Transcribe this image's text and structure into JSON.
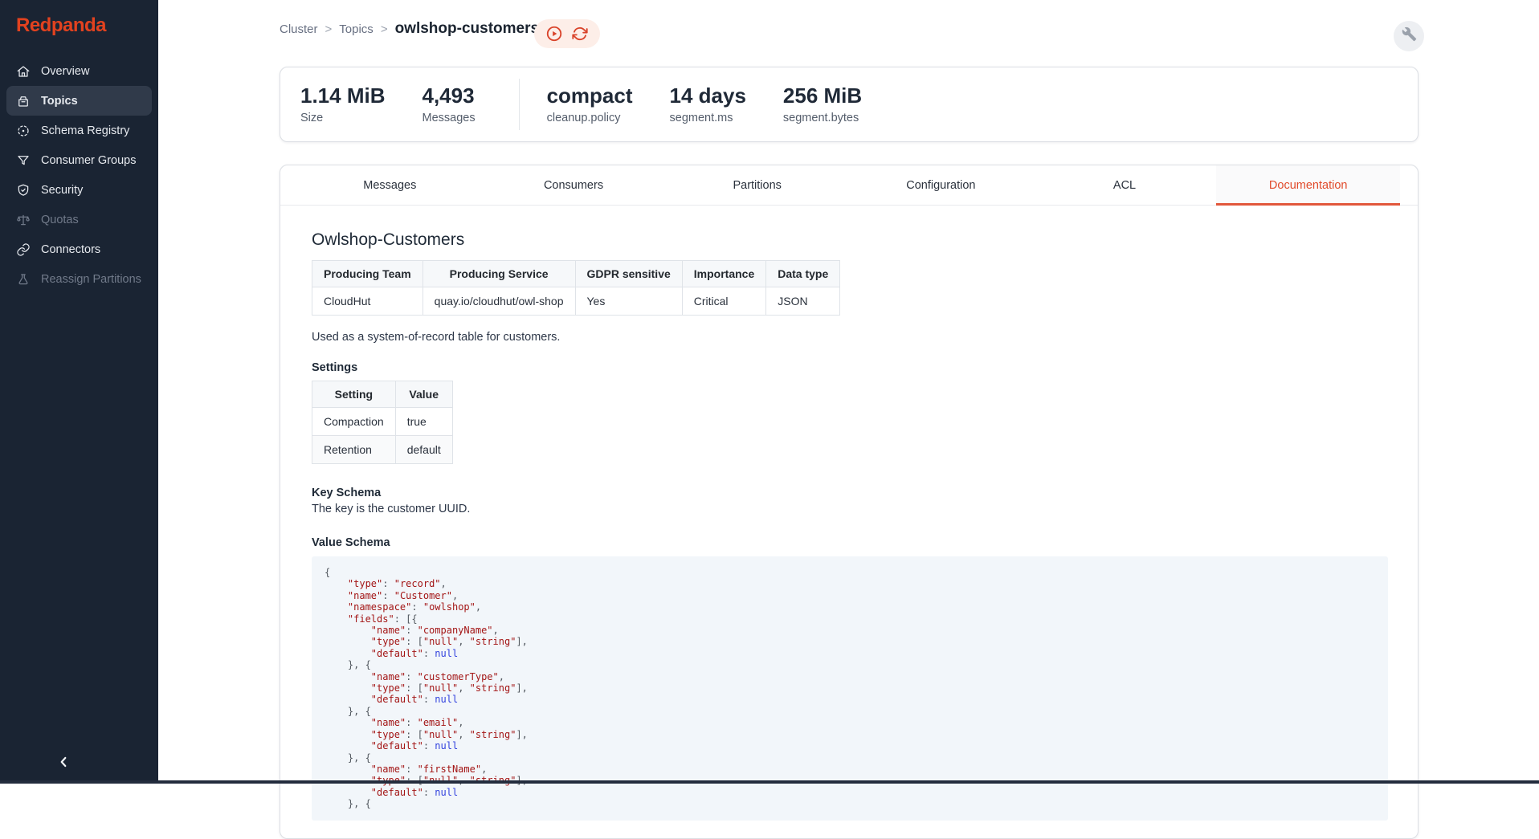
{
  "sidebar": {
    "logo": "Redpanda",
    "items": [
      {
        "label": "Overview",
        "icon": "home",
        "active": false,
        "disabled": false
      },
      {
        "label": "Topics",
        "icon": "topics-box",
        "active": true,
        "disabled": false
      },
      {
        "label": "Schema Registry",
        "icon": "schema-registry",
        "active": false,
        "disabled": false
      },
      {
        "label": "Consumer Groups",
        "icon": "funnel",
        "active": false,
        "disabled": false
      },
      {
        "label": "Security",
        "icon": "shield-check",
        "active": false,
        "disabled": false
      },
      {
        "label": "Quotas",
        "icon": "scale",
        "active": false,
        "disabled": true
      },
      {
        "label": "Connectors",
        "icon": "link",
        "active": false,
        "disabled": false
      },
      {
        "label": "Reassign Partitions",
        "icon": "flask",
        "active": false,
        "disabled": true
      }
    ],
    "collapse_icon": "chevron-left"
  },
  "header": {
    "breadcrumb": {
      "items": [
        "Cluster",
        "Topics"
      ],
      "separator": ">",
      "current": "owlshop-customers"
    },
    "actions": [
      {
        "icon": "play-circle"
      },
      {
        "icon": "refresh"
      }
    ],
    "right_button_icon": "wrench"
  },
  "stats": {
    "items": [
      {
        "value": "1.14 MiB",
        "label": "Size"
      },
      {
        "value": "4,493",
        "label": "Messages"
      },
      {
        "value": "compact",
        "label": "cleanup.policy"
      },
      {
        "value": "14 days",
        "label": "segment.ms"
      },
      {
        "value": "256 MiB",
        "label": "segment.bytes"
      }
    ]
  },
  "tabs": {
    "items": [
      "Messages",
      "Consumers",
      "Partitions",
      "Configuration",
      "ACL",
      "Documentation"
    ],
    "active": "Documentation"
  },
  "documentation": {
    "title": "Owlshop-Customers",
    "info_table": {
      "headers": [
        "Producing Team",
        "Producing Service",
        "GDPR sensitive",
        "Importance",
        "Data type"
      ],
      "rows": [
        [
          "CloudHut",
          "quay.io/cloudhut/owl-shop",
          "Yes",
          "Critical",
          "JSON"
        ]
      ]
    },
    "description": "Used as a system-of-record table for customers.",
    "settings_heading": "Settings",
    "settings_table": {
      "headers": [
        "Setting",
        "Value"
      ],
      "rows": [
        [
          "Compaction",
          "true"
        ],
        [
          "Retention",
          "default"
        ]
      ]
    },
    "key_schema_heading": "Key Schema",
    "key_schema_text": "The key is the customer UUID.",
    "value_schema_heading": "Value Schema",
    "value_schema_code": [
      "{",
      "    \"type\": \"record\",",
      "    \"name\": \"Customer\",",
      "    \"namespace\": \"owlshop\",",
      "    \"fields\": [{",
      "        \"name\": \"companyName\",",
      "        \"type\": [\"null\", \"string\"],",
      "        \"default\": null",
      "    }, {",
      "        \"name\": \"customerType\",",
      "        \"type\": [\"null\", \"string\"],",
      "        \"default\": null",
      "    }, {",
      "        \"name\": \"email\",",
      "        \"type\": [\"null\", \"string\"],",
      "        \"default\": null",
      "    }, {",
      "        \"name\": \"firstName\",",
      "        \"type\": [\"null\", \"string\"],",
      "        \"default\": null",
      "    }, {"
    ]
  },
  "colors": {
    "sidebar_bg": "#1a2433",
    "logo_red": "#e2421f",
    "accent_orange": "#e14b2b",
    "tab_underline": "#e2573b",
    "code_string": "#a31515",
    "code_keyword": "#3242de",
    "code_bg": "#f2f6fa"
  }
}
